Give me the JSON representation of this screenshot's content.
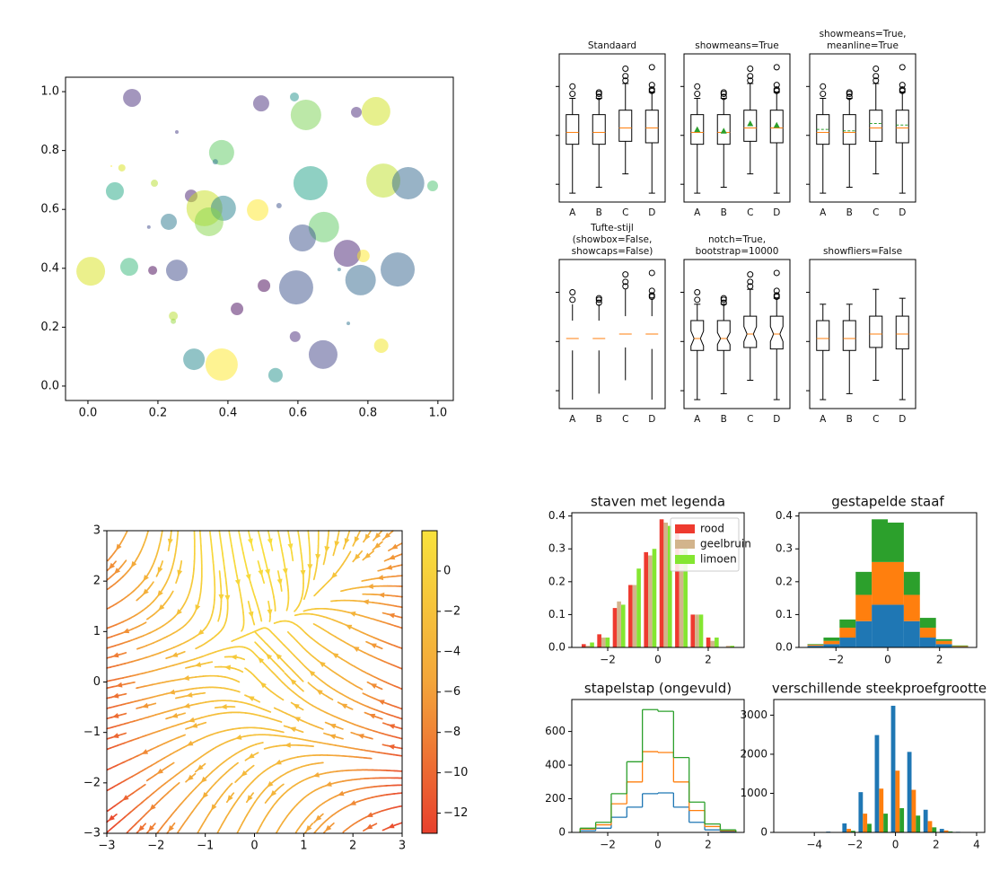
{
  "chart_data": [
    {
      "type": "scatter",
      "x": [
        0.126,
        0.495,
        0.59,
        0.623,
        0.823,
        0.767,
        0.254,
        0.382,
        0.364,
        0.067,
        0.097,
        0.077,
        0.19,
        0.295,
        0.636,
        0.844,
        0.915,
        0.985,
        0.333,
        0.387,
        0.346,
        0.485,
        0.231,
        0.546,
        0.174,
        0.674,
        0.613,
        0.741,
        0.787,
        0.885,
        0.008,
        0.118,
        0.185,
        0.254,
        0.718,
        0.779,
        0.595,
        0.503,
        0.426,
        0.244,
        0.244,
        0.744,
        0.592,
        0.672,
        0.838,
        0.303,
        0.382,
        0.536
      ],
      "y": [
        0.979,
        0.96,
        0.982,
        0.921,
        0.933,
        0.93,
        0.863,
        0.793,
        0.762,
        0.747,
        0.741,
        0.662,
        0.689,
        0.646,
        0.689,
        0.698,
        0.689,
        0.68,
        0.604,
        0.604,
        0.558,
        0.598,
        0.558,
        0.613,
        0.54,
        0.54,
        0.503,
        0.451,
        0.442,
        0.396,
        0.39,
        0.405,
        0.393,
        0.393,
        0.396,
        0.36,
        0.335,
        0.341,
        0.262,
        0.238,
        0.22,
        0.213,
        0.168,
        0.107,
        0.137,
        0.091,
        0.073,
        0.037
      ],
      "sizes": [
        400,
        324,
        100,
        1156,
        1024,
        144,
        16,
        784,
        36,
        4,
        64,
        400,
        64,
        196,
        1444,
        1444,
        1296,
        144,
        1600,
        784,
        1024,
        576,
        324,
        36,
        16,
        1156,
        900,
        900,
        196,
        1444,
        1024,
        400,
        100,
        576,
        16,
        1156,
        1444,
        196,
        196,
        100,
        36,
        16,
        144,
        1024,
        256,
        576,
        1296,
        256
      ],
      "colors": [
        "#472d7b",
        "#472d7b",
        "#21918c",
        "#7ad151",
        "#d0e11c",
        "#482878",
        "#443983",
        "#5ec962",
        "#2c728e",
        "#fde725",
        "#d8e219",
        "#22a884",
        "#b5de2b",
        "#481f70",
        "#1fa187",
        "#bddf26",
        "#31688e",
        "#4ac16d",
        "#c8e020",
        "#26828e",
        "#86d549",
        "#fde725",
        "#2a788e",
        "#3b528b",
        "#3e4989",
        "#5ec962",
        "#3b528b",
        "#482173",
        "#fde725",
        "#33638d",
        "#d8e219",
        "#35b779",
        "#440154",
        "#3e4989",
        "#2a788e",
        "#31688e",
        "#3b528b",
        "#440154",
        "#46085c",
        "#b5de2b",
        "#95d840",
        "#2c728e",
        "#472a7a",
        "#414487",
        "#f1e51d",
        "#23888e",
        "#fde725",
        "#21918c"
      ],
      "alpha": 0.5,
      "xlim": [
        -0.064,
        1.044
      ],
      "ylim": [
        -0.049,
        1.049
      ],
      "xticks": [
        {
          "value": 0,
          "label": "0.0"
        },
        0.2,
        0.4,
        0.6,
        0.8,
        {
          "value": 1,
          "label": "1.0"
        }
      ],
      "yticks": [
        {
          "value": 0,
          "label": "0.0"
        },
        0.2,
        0.4,
        0.6,
        0.8,
        {
          "value": 1,
          "label": "1.0"
        }
      ]
    },
    {
      "type": "boxplot",
      "categories": [
        "A",
        "B",
        "C",
        "D"
      ],
      "stats": [
        {
          "whislo": 6,
          "q1": 39,
          "med": 47,
          "q3": 59,
          "whishi": 70,
          "mean": 49,
          "notch_lo": 42,
          "notch_hi": 52,
          "fliers": [
            73,
            78
          ]
        },
        {
          "whislo": 10,
          "q1": 39,
          "med": 47,
          "q3": 59,
          "whishi": 70,
          "mean": 48,
          "notch_lo": 43,
          "notch_hi": 51,
          "fliers": [
            71,
            73,
            74
          ]
        },
        {
          "whislo": 19,
          "q1": 41,
          "med": 50,
          "q3": 62,
          "whishi": 80,
          "mean": 53,
          "notch_lo": 45,
          "notch_hi": 55,
          "fliers": [
            82,
            85,
            90
          ]
        },
        {
          "whislo": 6,
          "q1": 40,
          "med": 50,
          "q3": 62,
          "whishi": 74,
          "mean": 52,
          "notch_lo": 45,
          "notch_hi": 55,
          "fliers": [
            75,
            76,
            79,
            91
          ]
        }
      ],
      "ylim": [
        0,
        100
      ],
      "yticks": [
        12,
        45,
        78
      ],
      "panels": [
        {
          "title": [
            "Standaard"
          ]
        },
        {
          "title": [
            "showmeans=True"
          ],
          "showmeans": true
        },
        {
          "title": [
            "showmeans=True,",
            "meanline=True"
          ],
          "showmeans": true,
          "meanline": true
        },
        {
          "title": [
            "Tufte-stijl",
            "(showbox=False,",
            "showcaps=False)"
          ],
          "showbox": false,
          "showcaps": false
        },
        {
          "title": [
            "notch=True,",
            "bootstrap=10000"
          ],
          "notch": true
        },
        {
          "title": [
            "showfliers=False"
          ],
          "showfliers": false
        }
      ]
    },
    {
      "type": "streamplot",
      "grid_x": [
        -3,
        -2,
        -1,
        0,
        1,
        2,
        3
      ],
      "grid_y": [
        -3,
        -2,
        -1,
        0,
        1,
        2,
        3
      ],
      "u": [
        [
          -13,
          -8,
          -5,
          -4,
          -5,
          -8,
          -13
        ],
        [
          -12,
          -7,
          -4,
          -3,
          -4,
          -7,
          -12
        ],
        [
          -11,
          -6,
          -3,
          -2,
          -3,
          -6,
          -11
        ],
        [
          -10,
          -5,
          -2,
          -1,
          -2,
          -5,
          -10
        ],
        [
          -9,
          -4,
          -1,
          0,
          -1,
          -4,
          -9
        ],
        [
          -8,
          -3,
          0,
          1,
          0,
          -3,
          -8
        ],
        [
          -7,
          -2,
          1,
          2,
          1,
          -2,
          -7
        ]
      ],
      "v": [
        [
          -11,
          -10,
          -9,
          -8,
          -7,
          -6,
          -5
        ],
        [
          -6,
          -5,
          -4,
          -3,
          -2,
          -1,
          0
        ],
        [
          -3,
          -2,
          -1,
          0,
          1,
          2,
          3
        ],
        [
          -2,
          -1,
          0,
          1,
          2,
          3,
          4
        ],
        [
          -3,
          -2,
          -1,
          0,
          1,
          2,
          3
        ],
        [
          -6,
          -5,
          -4,
          -3,
          -2,
          -1,
          0
        ],
        [
          -11,
          -10,
          -9,
          -8,
          -7,
          -6,
          -5
        ]
      ],
      "colormap": [
        "#e8402d",
        "#f3a53a",
        "#f8e23c"
      ],
      "clim": [
        -13,
        2
      ],
      "colorbar_ticks": [
        0,
        {
          "value": -2,
          "label": "−2"
        },
        {
          "value": -4,
          "label": "−4"
        },
        {
          "value": -6,
          "label": "−6"
        },
        {
          "value": -8,
          "label": "−8"
        },
        {
          "value": -10,
          "label": "−10"
        },
        {
          "value": -12,
          "label": "−12"
        }
      ],
      "xlim": [
        -3,
        3
      ],
      "ylim": [
        -3,
        3
      ],
      "xticks": [
        {
          "value": -3,
          "label": "−3"
        },
        {
          "value": -2,
          "label": "−2"
        },
        {
          "value": -1,
          "label": "−1"
        },
        0,
        1,
        2,
        3
      ],
      "yticks": [
        {
          "value": -3,
          "label": "−3"
        },
        {
          "value": -2,
          "label": "−2"
        },
        {
          "value": -1,
          "label": "−1"
        },
        0,
        1,
        2,
        3
      ]
    },
    {
      "type": "histogram",
      "histtype": "bar",
      "title": "staven met legenda",
      "bins": [
        -3.1,
        -2.48,
        -1.86,
        -1.24,
        -0.62,
        0,
        0.62,
        1.24,
        1.86,
        2.48,
        3.1
      ],
      "series": [
        {
          "name": "rood",
          "color": "#ee3a2f",
          "values": [
            0.01,
            0.04,
            0.12,
            0.19,
            0.29,
            0.39,
            0.35,
            0.1,
            0.03,
            0.0
          ]
        },
        {
          "name": "geelbruin",
          "color": "#d2b48c",
          "values": [
            0.005,
            0.03,
            0.14,
            0.19,
            0.28,
            0.38,
            0.3,
            0.1,
            0.02,
            0.005
          ]
        },
        {
          "name": "limoen",
          "color": "#84e631",
          "values": [
            0.015,
            0.03,
            0.13,
            0.24,
            0.3,
            0.37,
            0.32,
            0.1,
            0.03,
            0.005
          ]
        }
      ],
      "legend": "upper right",
      "xlim": [
        -3.43,
        3.43
      ],
      "ylim": [
        0,
        0.41
      ],
      "xticks": [
        {
          "value": -2,
          "label": "−2"
        },
        0,
        2
      ],
      "yticks": [
        {
          "value": 0,
          "label": "0.0"
        },
        0.1,
        0.2,
        0.3,
        0.4
      ]
    },
    {
      "type": "histogram",
      "histtype": "barstacked",
      "title": "gestapelde staaf",
      "bins": [
        -3.1,
        -2.48,
        -1.86,
        -1.24,
        -0.62,
        0,
        0.62,
        1.24,
        1.86,
        2.48,
        3.1
      ],
      "series": [
        {
          "color": "#1f77b4",
          "values": [
            0.005,
            0.01,
            0.03,
            0.08,
            0.13,
            0.13,
            0.08,
            0.03,
            0.01,
            0.002
          ]
        },
        {
          "color": "#ff7f0e",
          "values": [
            0.003,
            0.01,
            0.03,
            0.08,
            0.13,
            0.13,
            0.08,
            0.03,
            0.01,
            0.002
          ]
        },
        {
          "color": "#2ca02c",
          "values": [
            0.002,
            0.01,
            0.025,
            0.07,
            0.13,
            0.12,
            0.07,
            0.03,
            0.005,
            0.002
          ]
        }
      ],
      "xlim": [
        -3.43,
        3.43
      ],
      "ylim": [
        0,
        0.41
      ],
      "xticks": [
        {
          "value": -2,
          "label": "−2"
        },
        0,
        2
      ],
      "yticks": [
        {
          "value": 0,
          "label": "0.0"
        },
        0.1,
        0.2,
        0.3,
        0.4
      ]
    },
    {
      "type": "histogram",
      "histtype": "step",
      "title": "stapelstap (ongevuld)",
      "bins": [
        -3.1,
        -2.48,
        -1.86,
        -1.24,
        -0.62,
        0,
        0.62,
        1.24,
        1.86,
        2.48,
        3.1
      ],
      "series": [
        {
          "color": "#1f77b4",
          "values": [
            10,
            25,
            90,
            150,
            230,
            235,
            150,
            60,
            15,
            5
          ]
        },
        {
          "color": "#ff7f0e",
          "values": [
            10,
            20,
            80,
            150,
            250,
            240,
            150,
            70,
            20,
            5
          ]
        },
        {
          "color": "#2ca02c",
          "values": [
            5,
            15,
            60,
            120,
            250,
            245,
            145,
            50,
            15,
            5
          ]
        }
      ],
      "xlim": [
        -3.43,
        3.43
      ],
      "ylim": [
        0,
        790
      ],
      "xticks": [
        {
          "value": -2,
          "label": "−2"
        },
        0,
        2
      ],
      "yticks": [
        0,
        200,
        400,
        600
      ]
    },
    {
      "type": "histogram",
      "histtype": "bar",
      "title": "verschillende steekproefgrootte",
      "bins": [
        -3.5,
        -2.7,
        -1.9,
        -1.1,
        -0.3,
        0.5,
        1.3,
        2.1,
        2.9,
        3.7
      ],
      "series": [
        {
          "color": "#1f77b4",
          "values": [
            20,
            230,
            1030,
            2490,
            3240,
            2060,
            580,
            90,
            15
          ]
        },
        {
          "color": "#ff7f0e",
          "values": [
            5,
            90,
            480,
            1120,
            1580,
            1090,
            290,
            50,
            5
          ]
        },
        {
          "color": "#2ca02c",
          "values": [
            2,
            40,
            220,
            480,
            620,
            430,
            130,
            25,
            3
          ]
        }
      ],
      "xlim": [
        -6,
        4.4
      ],
      "ylim": [
        0,
        3400
      ],
      "xticks": [
        {
          "value": -4,
          "label": "−4"
        },
        {
          "value": -2,
          "label": "−2"
        },
        0,
        2,
        4
      ],
      "yticks": [
        0,
        1000,
        2000,
        3000
      ]
    }
  ]
}
